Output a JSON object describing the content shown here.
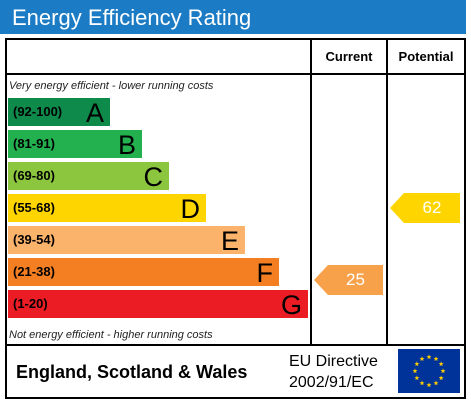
{
  "title": "Energy Efficiency Rating",
  "columns": {
    "current": "Current",
    "potential": "Potential"
  },
  "notes": {
    "top": "Very energy efficient - lower running costs",
    "bottom": "Not energy efficient - higher running costs"
  },
  "bands": [
    {
      "range": "(92-100)",
      "letter": "A",
      "color": "#0e8a4a",
      "text_color": "#000000"
    },
    {
      "range": "(81-91)",
      "letter": "B",
      "color": "#23b04f",
      "text_color": "#000000"
    },
    {
      "range": "(69-80)",
      "letter": "C",
      "color": "#8cc63f",
      "text_color": "#000000"
    },
    {
      "range": "(55-68)",
      "letter": "D",
      "color": "#ffd500",
      "text_color": "#000000"
    },
    {
      "range": "(39-54)",
      "letter": "E",
      "color": "#fbb26b",
      "text_color": "#000000"
    },
    {
      "range": "(21-38)",
      "letter": "F",
      "color": "#f47f23",
      "text_color": "#000000"
    },
    {
      "range": "(1-20)",
      "letter": "G",
      "color": "#ec1c24",
      "text_color": "#000000"
    }
  ],
  "ratings": {
    "current": {
      "value": "25",
      "band": "F",
      "color": "#f7a14a"
    },
    "potential": {
      "value": "62",
      "band": "D",
      "color": "#ffd500"
    }
  },
  "footer": {
    "region": "England, Scotland & Wales",
    "directive_line1": "EU Directive",
    "directive_line2": "2002/91/EC"
  },
  "colors": {
    "title_bar": "#1b7bc4",
    "eu_flag": "#003399",
    "eu_stars": "#ffcc00"
  },
  "icons": {
    "flag": "eu-flag-icon"
  }
}
